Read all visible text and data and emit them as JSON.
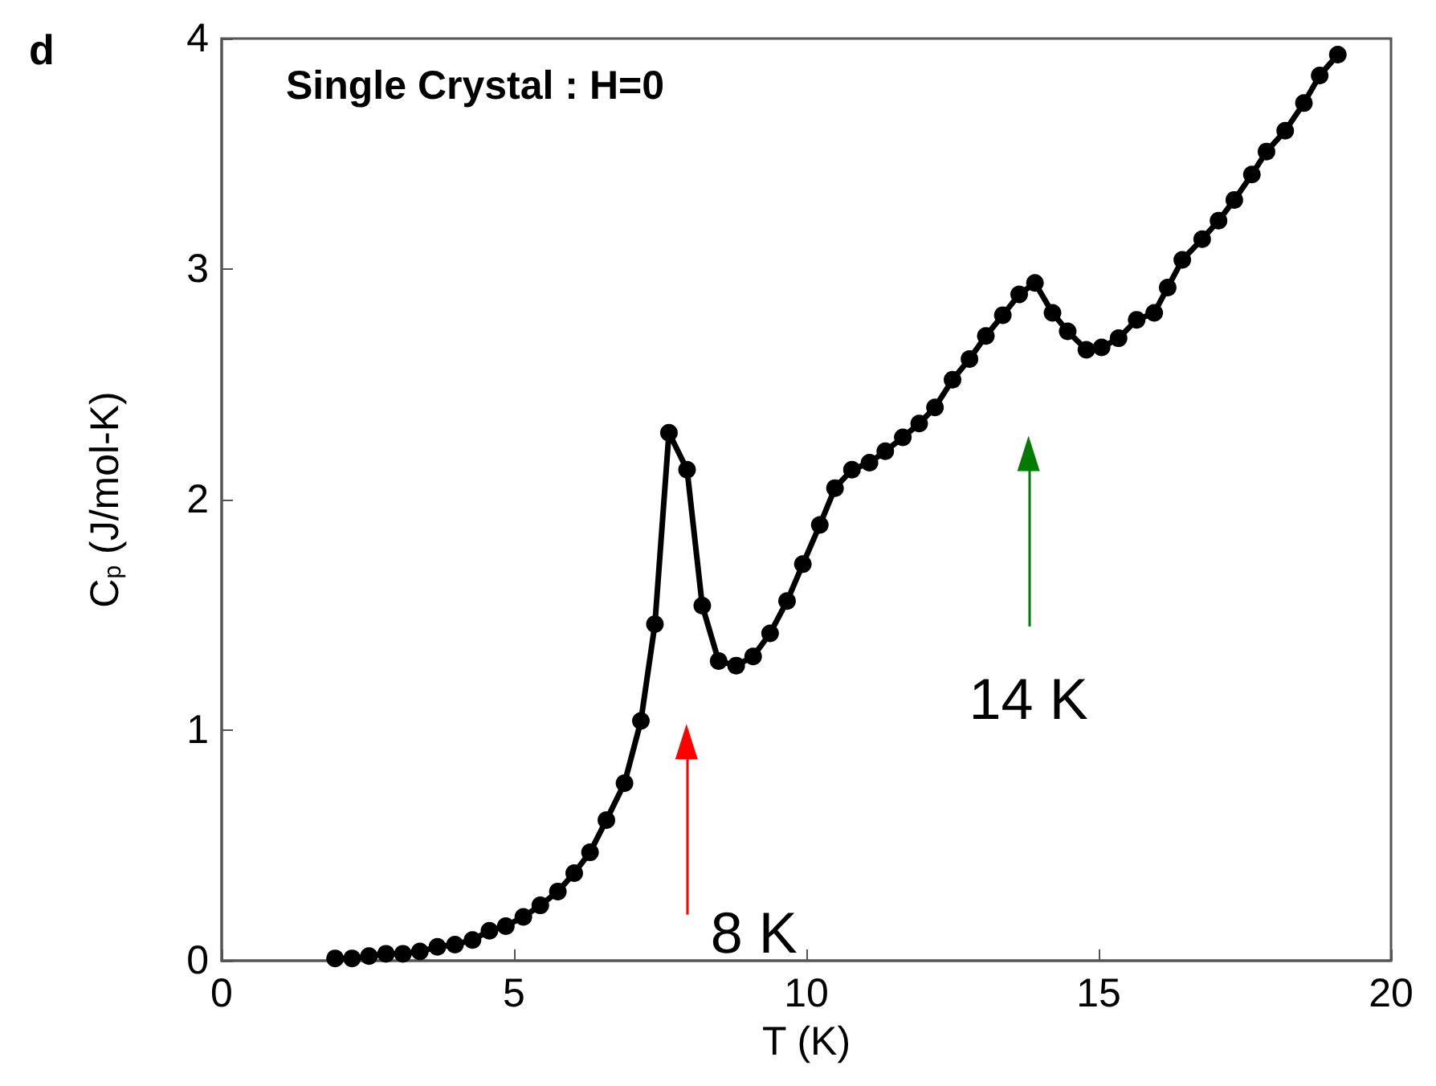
{
  "chart_data": {
    "type": "line",
    "title": "Single Crystal : H=0",
    "xlabel": "T (K)",
    "ylabel": "C$_{p}$ (J/mol-K)",
    "x": [
      1.94,
      2.23,
      2.52,
      2.81,
      3.1,
      3.39,
      3.69,
      3.99,
      4.29,
      4.58,
      4.86,
      5.16,
      5.45,
      5.75,
      6.03,
      6.3,
      6.58,
      6.89,
      7.17,
      7.41,
      7.65,
      7.96,
      8.22,
      8.5,
      8.8,
      9.09,
      9.38,
      9.67,
      9.94,
      10.23,
      10.49,
      10.78,
      11.08,
      11.35,
      11.65,
      11.93,
      12.2,
      12.5,
      12.79,
      13.07,
      13.36,
      13.64,
      13.91,
      14.21,
      14.47,
      14.79,
      15.05,
      15.34,
      15.65,
      15.95,
      16.18,
      16.43,
      16.77,
      17.05,
      17.32,
      17.62,
      17.87,
      18.19,
      18.51,
      18.78,
      19.09
    ],
    "series": [
      {
        "color": "#000000",
        "values": [
          0.01,
          0.01,
          0.02,
          0.03,
          0.03,
          0.04,
          0.06,
          0.07,
          0.09,
          0.13,
          0.15,
          0.19,
          0.24,
          0.3,
          0.38,
          0.47,
          0.61,
          0.77,
          1.04,
          1.46,
          2.29,
          2.13,
          1.54,
          1.3,
          1.28,
          1.32,
          1.42,
          1.56,
          1.72,
          1.89,
          2.05,
          2.13,
          2.16,
          2.21,
          2.27,
          2.33,
          2.4,
          2.52,
          2.61,
          2.71,
          2.8,
          2.89,
          2.94,
          2.81,
          2.73,
          2.65,
          2.66,
          2.7,
          2.78,
          2.81,
          2.92,
          3.04,
          3.13,
          3.21,
          3.3,
          3.41,
          3.51,
          3.6,
          3.72,
          3.84,
          3.93
        ]
      }
    ],
    "xlim": [
      0,
      20
    ],
    "xticks": [
      0,
      5,
      10,
      15,
      20
    ],
    "ylim": [
      0,
      4
    ],
    "yticks": [
      0,
      1,
      2,
      3,
      4
    ],
    "marker": "circle",
    "line_style": "solid",
    "grid": false,
    "annotations": [
      "d",
      {
        "text": "8 K",
        "x": 7.95,
        "y": 0.95
      },
      {
        "text": "14 K",
        "x": 13.8,
        "y": 2.2
      }
    ]
  }
}
